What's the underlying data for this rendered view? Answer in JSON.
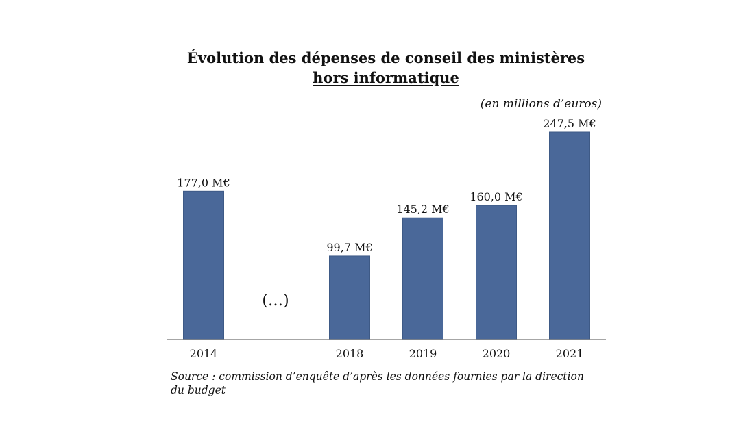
{
  "title": "Évolution des dépenses de conseil des ministères",
  "subtitle": "hors informatique",
  "unit_note": "(en millions d’euros)",
  "source_note": "Source : commission d’enquête d’après les données fournies par la direction du budget",
  "colors": {
    "bar": "#4a6899"
  },
  "chart_data": {
    "type": "bar",
    "title": "Évolution des dépenses de conseil des ministères hors informatique",
    "categories": [
      "2014",
      "(…)",
      "2018",
      "2019",
      "2020",
      "2021"
    ],
    "values": [
      177.0,
      null,
      99.7,
      145.2,
      160.0,
      247.5
    ],
    "value_labels": [
      "177,0 M€",
      "",
      "99,7 M€",
      "145,2 M€",
      "160,0 M€",
      "247,5 M€"
    ],
    "gap_marker": "(…)",
    "xlabel": "",
    "ylabel": "",
    "ylim": [
      0,
      260
    ],
    "grid": false,
    "legend": "none"
  }
}
